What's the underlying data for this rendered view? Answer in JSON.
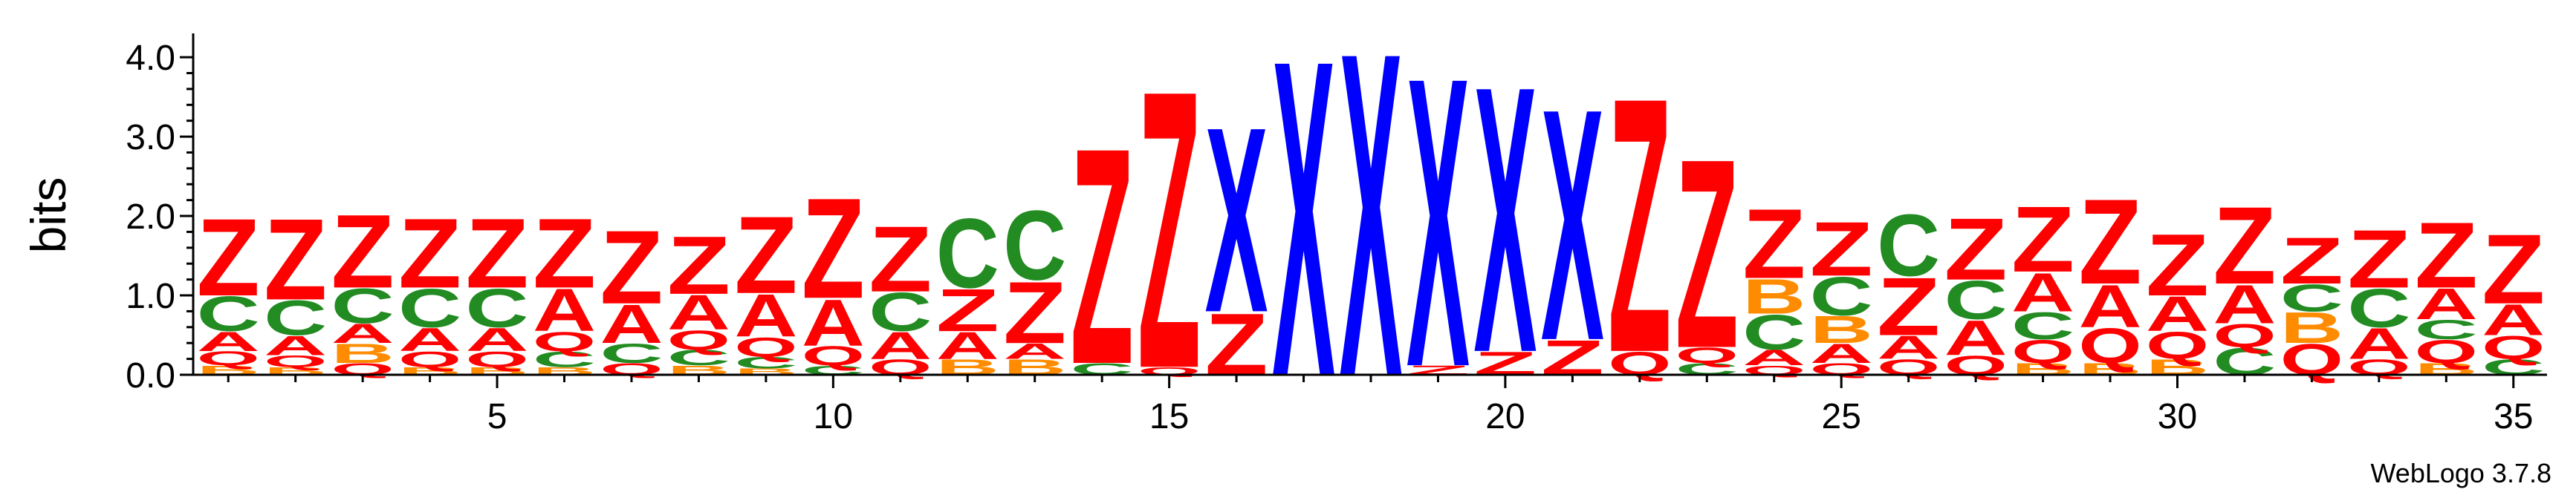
{
  "chart_data": {
    "type": "sequence-logo",
    "ylabel": "bits",
    "ylim": [
      0,
      4.3
    ],
    "y_ticks": [
      "0.0",
      "1.0",
      "2.0",
      "3.0",
      "4.0"
    ],
    "x_ticks": [
      "5",
      "10",
      "15",
      "20",
      "25",
      "30",
      "35"
    ],
    "x_tick_positions": [
      5,
      10,
      15,
      20,
      25,
      30,
      35
    ],
    "positions": 35,
    "colors": {
      "Z": "#ff0000",
      "X": "#0000ff",
      "C": "#228b22",
      "A": "#ff0000",
      "Q": "#ff0000",
      "B": "#ff8c00"
    },
    "stacks": [
      [
        [
          "B",
          0.12
        ],
        [
          "Q",
          0.18
        ],
        [
          "A",
          0.25
        ],
        [
          "C",
          0.45
        ],
        [
          "Z",
          1.0
        ]
      ],
      [
        [
          "B",
          0.1
        ],
        [
          "Q",
          0.15
        ],
        [
          "A",
          0.25
        ],
        [
          "C",
          0.45
        ],
        [
          "Z",
          1.05
        ]
      ],
      [
        [
          "Q",
          0.15
        ],
        [
          "B",
          0.25
        ],
        [
          "A",
          0.25
        ],
        [
          "C",
          0.45
        ],
        [
          "Z",
          0.95
        ]
      ],
      [
        [
          "B",
          0.1
        ],
        [
          "Q",
          0.2
        ],
        [
          "A",
          0.3
        ],
        [
          "C",
          0.5
        ],
        [
          "Z",
          0.9
        ]
      ],
      [
        [
          "B",
          0.1
        ],
        [
          "Q",
          0.2
        ],
        [
          "A",
          0.3
        ],
        [
          "C",
          0.5
        ],
        [
          "Z",
          0.9
        ]
      ],
      [
        [
          "B",
          0.1
        ],
        [
          "C",
          0.2
        ],
        [
          "Q",
          0.25
        ],
        [
          "A",
          0.55
        ],
        [
          "Z",
          0.9
        ]
      ],
      [
        [
          "Q",
          0.15
        ],
        [
          "C",
          0.25
        ],
        [
          "A",
          0.5
        ],
        [
          "Z",
          0.95
        ]
      ],
      [
        [
          "B",
          0.12
        ],
        [
          "C",
          0.2
        ],
        [
          "Q",
          0.25
        ],
        [
          "A",
          0.45
        ],
        [
          "Z",
          0.75
        ]
      ],
      [
        [
          "B",
          0.08
        ],
        [
          "C",
          0.15
        ],
        [
          "Q",
          0.25
        ],
        [
          "A",
          0.55
        ],
        [
          "Z",
          1.0
        ]
      ],
      [
        [
          "C",
          0.12
        ],
        [
          "Q",
          0.25
        ],
        [
          "A",
          0.6
        ],
        [
          "Z",
          1.3
        ]
      ],
      [
        [
          "Q",
          0.2
        ],
        [
          "A",
          0.35
        ],
        [
          "C",
          0.5
        ],
        [
          "Z",
          0.85
        ]
      ],
      [
        [
          "B",
          0.2
        ],
        [
          "A",
          0.35
        ],
        [
          "Z",
          0.55
        ],
        [
          "C",
          0.9
        ]
      ],
      [
        [
          "B",
          0.2
        ],
        [
          "A",
          0.2
        ],
        [
          "Z",
          0.8
        ],
        [
          "C",
          0.9
        ]
      ],
      [
        [
          "C",
          0.15
        ],
        [
          "Z",
          2.8
        ]
      ],
      [
        [
          "Q",
          0.1
        ],
        [
          "Z",
          3.6
        ]
      ],
      [
        [
          "Z",
          0.8
        ],
        [
          "X",
          2.4
        ]
      ],
      [
        [
          "X",
          4.1
        ]
      ],
      [
        [
          "X",
          4.2
        ]
      ],
      [
        [
          "Z",
          0.12
        ],
        [
          "X",
          3.75
        ]
      ],
      [
        [
          "Z",
          0.3
        ],
        [
          "X",
          3.45
        ]
      ],
      [
        [
          "Z",
          0.45
        ],
        [
          "X",
          3.0
        ]
      ],
      [
        [
          "Q",
          0.3
        ],
        [
          "Z",
          3.3
        ]
      ],
      [
        [
          "C",
          0.15
        ],
        [
          "Q",
          0.2
        ],
        [
          "Z",
          2.45
        ]
      ],
      [
        [
          "Q",
          0.12
        ],
        [
          "A",
          0.2
        ],
        [
          "C",
          0.45
        ],
        [
          "B",
          0.45
        ],
        [
          "Z",
          0.9
        ]
      ],
      [
        [
          "Q",
          0.15
        ],
        [
          "A",
          0.25
        ],
        [
          "B",
          0.35
        ],
        [
          "C",
          0.5
        ],
        [
          "Z",
          0.7
        ]
      ],
      [
        [
          "Q",
          0.2
        ],
        [
          "A",
          0.3
        ],
        [
          "Z",
          0.75
        ],
        [
          "C",
          0.8
        ]
      ],
      [
        [
          "Q",
          0.25
        ],
        [
          "A",
          0.45
        ],
        [
          "C",
          0.5
        ],
        [
          "Z",
          0.8
        ]
      ],
      [
        [
          "B",
          0.15
        ],
        [
          "Q",
          0.3
        ],
        [
          "C",
          0.35
        ],
        [
          "A",
          0.5
        ],
        [
          "Z",
          0.85
        ]
      ],
      [
        [
          "B",
          0.15
        ],
        [
          "Q",
          0.45
        ],
        [
          "A",
          0.55
        ],
        [
          "Z",
          1.1
        ]
      ],
      [
        [
          "B",
          0.2
        ],
        [
          "Q",
          0.35
        ],
        [
          "A",
          0.45
        ],
        [
          "Z",
          0.8
        ]
      ],
      [
        [
          "C",
          0.35
        ],
        [
          "Q",
          0.3
        ],
        [
          "A",
          0.5
        ],
        [
          "Z",
          1.0
        ]
      ],
      [
        [
          "Q",
          0.4
        ],
        [
          "B",
          0.4
        ],
        [
          "C",
          0.35
        ],
        [
          "Z",
          0.6
        ]
      ],
      [
        [
          "Q",
          0.2
        ],
        [
          "A",
          0.4
        ],
        [
          "C",
          0.5
        ],
        [
          "Z",
          0.75
        ]
      ],
      [
        [
          "B",
          0.15
        ],
        [
          "Q",
          0.3
        ],
        [
          "C",
          0.25
        ],
        [
          "A",
          0.4
        ],
        [
          "Z",
          0.85
        ]
      ],
      [
        [
          "C",
          0.2
        ],
        [
          "Q",
          0.3
        ],
        [
          "A",
          0.4
        ],
        [
          "Z",
          0.9
        ]
      ]
    ]
  },
  "credit": "WebLogo 3.7.8"
}
